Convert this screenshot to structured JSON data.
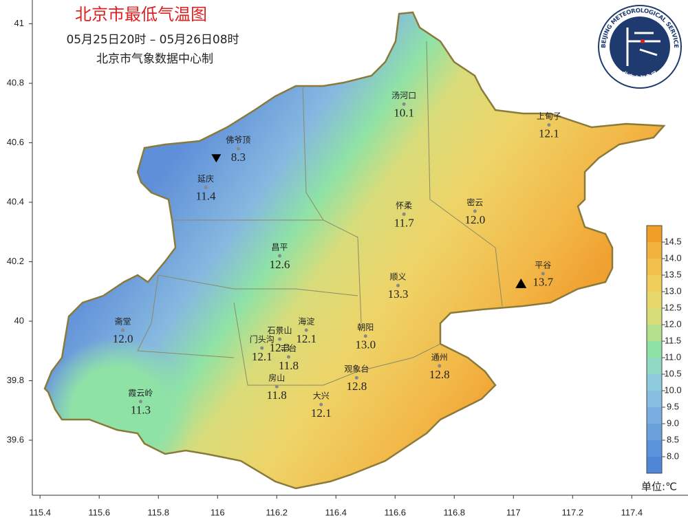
{
  "header": {
    "title": "北京市最低气温图",
    "period": "05月25日20时  –  05月26日08时",
    "source": "北京市气象数据中心制"
  },
  "map": {
    "xlim": [
      115.374,
      117.59
    ],
    "ylim": [
      39.415,
      41.08
    ],
    "xticks": [
      115.4,
      115.6,
      115.8,
      116,
      116.2,
      116.4,
      116.6,
      116.8,
      117,
      117.2,
      117.4
    ],
    "yticks": [
      39.6,
      39.8,
      40,
      40.2,
      40.4,
      40.6,
      40.8,
      41
    ],
    "stations": [
      {
        "name": "汤河口",
        "lon": 116.63,
        "lat": 40.73,
        "value": 10.1
      },
      {
        "name": "上甸子",
        "lon": 117.12,
        "lat": 40.66,
        "value": 12.1
      },
      {
        "name": "佛爷顶",
        "lon": 116.07,
        "lat": 40.58,
        "value": 8.3
      },
      {
        "name": "延庆",
        "lon": 115.96,
        "lat": 40.45,
        "value": 11.4
      },
      {
        "name": "怀柔",
        "lon": 116.63,
        "lat": 40.36,
        "value": 11.7
      },
      {
        "name": "密云",
        "lon": 116.87,
        "lat": 40.37,
        "value": 12.0,
        "value_label": "12.0"
      },
      {
        "name": "昌平",
        "lon": 116.21,
        "lat": 40.22,
        "value": 12.6
      },
      {
        "name": "顺义",
        "lon": 116.61,
        "lat": 40.12,
        "value": 13.3
      },
      {
        "name": "平谷",
        "lon": 117.1,
        "lat": 40.16,
        "value": 13.7
      },
      {
        "name": "斋堂",
        "lon": 115.68,
        "lat": 39.97,
        "value": 12.0,
        "value_label": "12.0"
      },
      {
        "name": "海淀",
        "lon": 116.3,
        "lat": 39.97,
        "value": 12.1
      },
      {
        "name": "石景山",
        "lon": 116.21,
        "lat": 39.94,
        "value": 12.3
      },
      {
        "name": "朝阳",
        "lon": 116.5,
        "lat": 39.95,
        "value": 13.0,
        "value_label": "13.0"
      },
      {
        "name": "门头沟",
        "lon": 116.15,
        "lat": 39.91,
        "value": 12.1
      },
      {
        "name": "丰台",
        "lon": 116.24,
        "lat": 39.88,
        "value": 11.8
      },
      {
        "name": "通州",
        "lon": 116.75,
        "lat": 39.85,
        "value": 12.8
      },
      {
        "name": "观象台",
        "lon": 116.47,
        "lat": 39.81,
        "value": 12.8
      },
      {
        "name": "房山",
        "lon": 116.2,
        "lat": 39.78,
        "value": 11.8
      },
      {
        "name": "霞云岭",
        "lon": 115.74,
        "lat": 39.73,
        "value": 11.3
      },
      {
        "name": "大兴",
        "lon": 116.35,
        "lat": 39.72,
        "value": 12.1
      }
    ]
  },
  "colorbar": {
    "ticks": [
      {
        "value": 8,
        "label": "8.0"
      },
      {
        "value": 8.5,
        "label": "8.5"
      },
      {
        "value": 9,
        "label": "9.0"
      },
      {
        "value": 9.5,
        "label": "9.5"
      },
      {
        "value": 10,
        "label": "10.0"
      },
      {
        "value": 10.5,
        "label": "10.5"
      },
      {
        "value": 11,
        "label": "11.0"
      },
      {
        "value": 11.5,
        "label": "11.5"
      },
      {
        "value": 12,
        "label": "12.0"
      },
      {
        "value": 12.5,
        "label": "12.5"
      },
      {
        "value": 13,
        "label": "13.0"
      },
      {
        "value": 13.5,
        "label": "13.5"
      },
      {
        "value": 14,
        "label": "14.0"
      },
      {
        "value": 14.5,
        "label": "14.5"
      }
    ],
    "colors": [
      "#4f86d8",
      "#5b93db",
      "#6aa0dc",
      "#7aaee0",
      "#86bde0",
      "#8ccadc",
      "#8ed8c4",
      "#8ee2a6",
      "#b4e08c",
      "#d6dc78",
      "#e8d86c",
      "#f0ce5c",
      "#f2c04c",
      "#f2b03c",
      "#f09e28"
    ]
  },
  "unit": "单位:℃",
  "logo": {
    "text_top": "BEIJING METEOROLOGICAL SERVICE",
    "text_bottom": "北京市气象局"
  }
}
